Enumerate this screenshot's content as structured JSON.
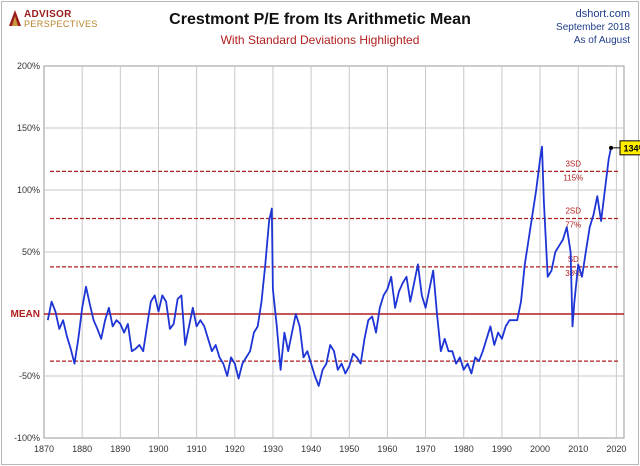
{
  "header": {
    "logo_line1": "ADVISOR",
    "logo_line2": "PERSPECTIVES",
    "title": "Crestmont P/E from Its Arithmetic Mean",
    "subtitle": "With Standard Deviations Highlighted",
    "source_site": "dshort.com",
    "source_date": "September 2018",
    "source_asof": "As of August"
  },
  "colors": {
    "line": "#1e35d6",
    "mean_line": "#b01e1e",
    "sd_lines": "#b01e1e",
    "grid": "#c8c8c8",
    "callout_fill": "#ffee00"
  },
  "chart_data": {
    "type": "line",
    "title": "Crestmont P/E from Its Arithmetic Mean",
    "subtitle": "With Standard Deviations Highlighted",
    "xlabel": "",
    "ylabel": "",
    "xlim": [
      1870,
      2022
    ],
    "ylim": [
      -100,
      200
    ],
    "x_ticks": [
      1870,
      1880,
      1890,
      1900,
      1910,
      1920,
      1930,
      1940,
      1950,
      1960,
      1970,
      1980,
      1990,
      2000,
      2010,
      2020
    ],
    "x_tick_labels": [
      "1870",
      "1880",
      "1890",
      "1900",
      "1910",
      "1920",
      "1930",
      "1940",
      "1950",
      "1960",
      "1970",
      "1980",
      "1990",
      "2000",
      "2010",
      "2020"
    ],
    "y_ticks": [
      -100,
      -50,
      0,
      50,
      100,
      150,
      200
    ],
    "y_tick_labels": [
      "-100%",
      "-50%",
      "MEAN",
      "50%",
      "100%",
      "150%",
      "200%"
    ],
    "grid": true,
    "reference_lines": [
      {
        "name": "3SD",
        "value": 115,
        "label": "3SD",
        "pct_label": "115%",
        "style": "dashed"
      },
      {
        "name": "2SD",
        "value": 77,
        "label": "2SD",
        "pct_label": "77%",
        "style": "dashed"
      },
      {
        "name": "SD",
        "value": 38,
        "label": "SD",
        "pct_label": "38%",
        "style": "dashed"
      },
      {
        "name": "MEAN",
        "value": 0,
        "label": "MEAN",
        "style": "solid"
      },
      {
        "name": "-SD",
        "value": -38,
        "label": "",
        "style": "dashed"
      }
    ],
    "callout": {
      "x": 2018.6,
      "y": 134,
      "label": "134%"
    },
    "series": [
      {
        "name": "Crestmont P/E deviation from mean (%)",
        "x": [
          1871,
          1872,
          1873,
          1874,
          1875,
          1876,
          1877,
          1878,
          1879,
          1880,
          1881,
          1882,
          1883,
          1884,
          1885,
          1886,
          1887,
          1888,
          1889,
          1890,
          1891,
          1892,
          1893,
          1894,
          1895,
          1896,
          1897,
          1898,
          1899,
          1900,
          1901,
          1902,
          1903,
          1904,
          1905,
          1906,
          1907,
          1908,
          1909,
          1910,
          1911,
          1912,
          1913,
          1914,
          1915,
          1916,
          1917,
          1918,
          1919,
          1920,
          1921,
          1922,
          1923,
          1924,
          1925,
          1926,
          1927,
          1928,
          1929,
          1929.7,
          1930,
          1931,
          1932,
          1933,
          1934,
          1935,
          1936,
          1937,
          1938,
          1939,
          1940,
          1941,
          1942,
          1943,
          1944,
          1945,
          1946,
          1947,
          1948,
          1949,
          1950,
          1951,
          1952,
          1953,
          1954,
          1955,
          1956,
          1957,
          1958,
          1959,
          1960,
          1961,
          1962,
          1963,
          1964,
          1965,
          1966,
          1967,
          1968,
          1969,
          1970,
          1971,
          1972,
          1973,
          1974,
          1975,
          1976,
          1977,
          1978,
          1979,
          1980,
          1981,
          1982,
          1983,
          1984,
          1985,
          1986,
          1987,
          1988,
          1989,
          1990,
          1991,
          1992,
          1993,
          1994,
          1995,
          1996,
          1997,
          1998,
          1999,
          2000,
          2000.5,
          2001,
          2002,
          2003,
          2004,
          2005,
          2006,
          2007,
          2008,
          2008.5,
          2009,
          2010,
          2011,
          2012,
          2013,
          2014,
          2015,
          2016,
          2017,
          2018,
          2018.6
        ],
        "values": [
          -5,
          10,
          2,
          -12,
          -5,
          -18,
          -28,
          -40,
          -20,
          5,
          22,
          8,
          -5,
          -12,
          -20,
          -5,
          5,
          -10,
          -5,
          -8,
          -15,
          -8,
          -30,
          -28,
          -25,
          -30,
          -10,
          10,
          15,
          2,
          15,
          10,
          -12,
          -8,
          12,
          15,
          -25,
          -10,
          5,
          -10,
          -5,
          -10,
          -20,
          -30,
          -25,
          -35,
          -40,
          -50,
          -35,
          -40,
          -52,
          -40,
          -35,
          -30,
          -15,
          -10,
          10,
          40,
          75,
          85,
          20,
          -10,
          -45,
          -15,
          -30,
          -15,
          0,
          -10,
          -35,
          -30,
          -40,
          -50,
          -58,
          -45,
          -40,
          -25,
          -30,
          -45,
          -40,
          -48,
          -42,
          -32,
          -35,
          -40,
          -20,
          -5,
          -2,
          -15,
          5,
          15,
          20,
          30,
          5,
          18,
          25,
          30,
          10,
          25,
          40,
          15,
          5,
          20,
          35,
          0,
          -30,
          -20,
          -30,
          -30,
          -40,
          -35,
          -45,
          -40,
          -48,
          -35,
          -38,
          -30,
          -20,
          -10,
          -25,
          -15,
          -20,
          -10,
          -5,
          -5,
          -5,
          10,
          40,
          60,
          80,
          100,
          125,
          135,
          90,
          30,
          35,
          50,
          55,
          60,
          70,
          50,
          -10,
          10,
          40,
          30,
          50,
          70,
          80,
          95,
          75,
          100,
          125,
          134
        ]
      }
    ]
  }
}
